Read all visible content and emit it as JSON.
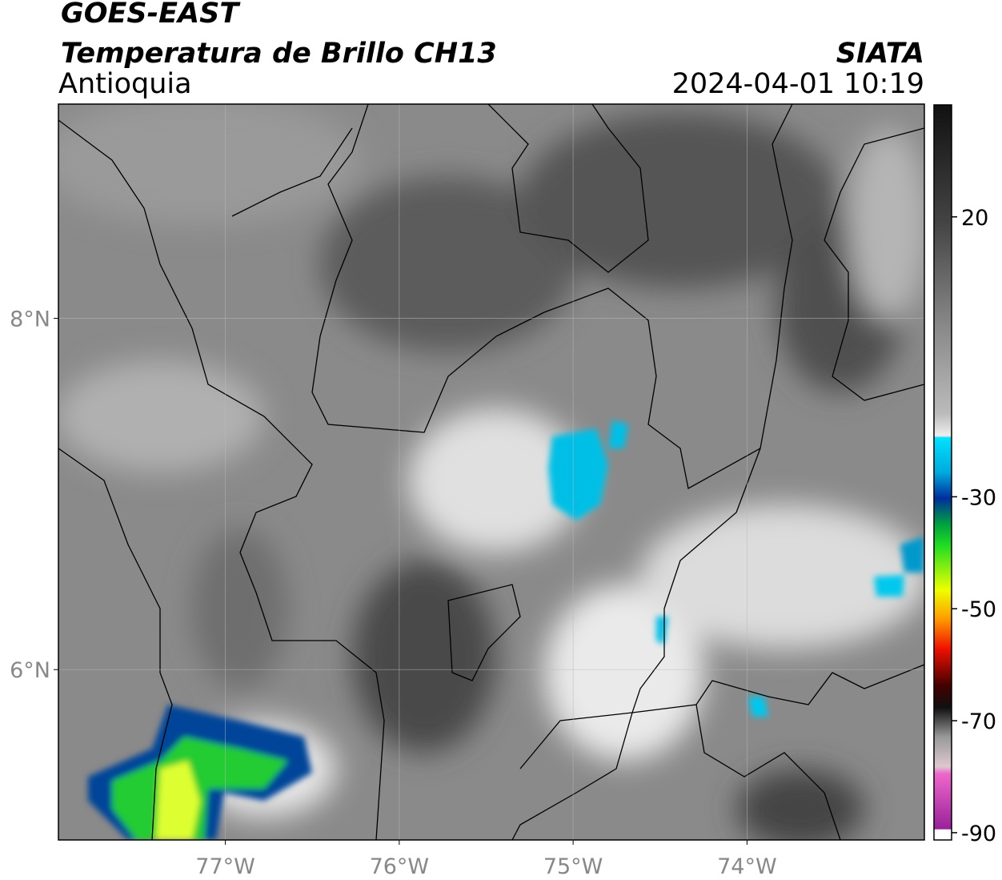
{
  "header": {
    "title": "GOES-EAST",
    "subtitle": "Temperatura de Brillo CH13",
    "region": "Antioquia",
    "source": "SIATA",
    "datetime": "2024-04-01 10:19"
  },
  "map": {
    "xlim": [
      -77.96,
      -72.98
    ],
    "ylim": [
      5.03,
      9.22
    ],
    "xticks": [
      {
        "value": -77,
        "label": "77°W"
      },
      {
        "value": -76,
        "label": "76°W"
      },
      {
        "value": -75,
        "label": "75°W"
      },
      {
        "value": -74,
        "label": "74°W"
      }
    ],
    "yticks": [
      {
        "value": 8,
        "label": "8°N"
      },
      {
        "value": 6,
        "label": "6°N"
      }
    ]
  },
  "colorbar": {
    "lim": [
      -91.3,
      40
    ],
    "ticks": [
      20,
      -30,
      -50,
      -70,
      -90
    ]
  }
}
